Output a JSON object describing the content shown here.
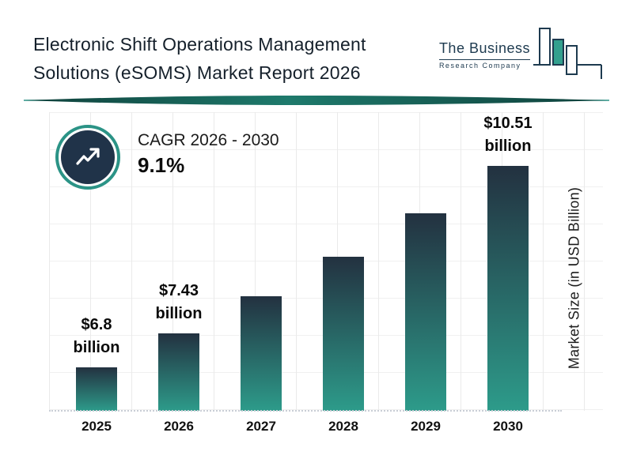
{
  "header": {
    "title_line1": "Electronic Shift Operations Management",
    "title_line2": "Solutions (eSOMS) Market Report 2026",
    "logo": {
      "name_top": "The Business",
      "name_bottom": "Research Company"
    }
  },
  "cagr": {
    "label": "CAGR 2026 - 2030",
    "value": "9.1%"
  },
  "chart_data": {
    "type": "bar",
    "title": "Electronic Shift Operations Management Solutions (eSOMS) Market Report 2026",
    "categories": [
      "2025",
      "2026",
      "2027",
      "2028",
      "2029",
      "2030"
    ],
    "values": [
      6.8,
      7.43,
      8.11,
      8.84,
      9.64,
      10.51
    ],
    "labels": [
      {
        "amount": "$6.8",
        "unit": "billion"
      },
      {
        "amount": "$7.43",
        "unit": "billion"
      },
      null,
      null,
      null,
      {
        "amount": "$10.51",
        "unit": "billion"
      }
    ],
    "xlabel": "",
    "ylabel": "Market Size (in USD Billion)",
    "grid": true,
    "legend": false,
    "bar_color_top": "#233140",
    "bar_color_bottom": "#2d9b8a"
  },
  "colors": {
    "accent_teal": "#2b9386",
    "dark_navy": "#203349",
    "divider_dark": "#0e3f3a",
    "divider_light": "#1e7a6c"
  }
}
